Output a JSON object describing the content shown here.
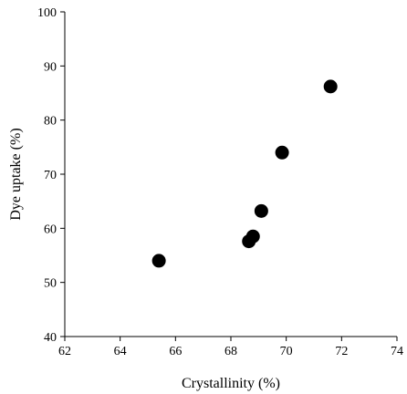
{
  "chart_data": {
    "type": "scatter",
    "title": "",
    "xlabel": "Crystallinity (%)",
    "ylabel": "Dye uptake (%)",
    "xlim": [
      62,
      74
    ],
    "ylim": [
      40,
      100
    ],
    "x_ticks": [
      62,
      64,
      66,
      68,
      70,
      72,
      74
    ],
    "y_ticks": [
      40,
      50,
      60,
      70,
      80,
      90,
      100
    ],
    "grid": false,
    "legend": "none",
    "marker_color": "#000000",
    "series": [
      {
        "points": [
          {
            "x": 65.4,
            "y": 54.0
          },
          {
            "x": 68.65,
            "y": 57.6
          },
          {
            "x": 68.8,
            "y": 58.5
          },
          {
            "x": 69.1,
            "y": 63.2
          },
          {
            "x": 69.85,
            "y": 74.0
          },
          {
            "x": 71.6,
            "y": 86.2
          }
        ]
      }
    ]
  }
}
